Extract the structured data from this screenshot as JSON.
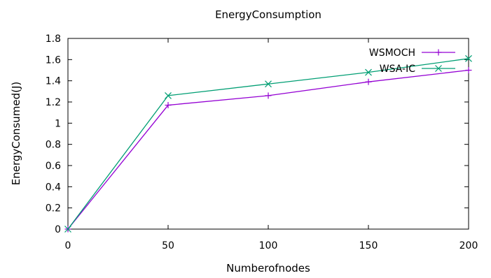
{
  "chart_data": {
    "type": "line",
    "title": "EnergyConsumption",
    "xlabel": "Numberofnodes",
    "ylabel": "EnergyConsumed(J)",
    "x": [
      0,
      50,
      100,
      150,
      200
    ],
    "xlim": [
      0,
      200
    ],
    "ylim": [
      0,
      1.8
    ],
    "xticks": [
      0,
      50,
      100,
      150,
      200
    ],
    "xtick_labels": [
      "0",
      "50",
      "100",
      "150",
      "200"
    ],
    "yticks": [
      0,
      0.2,
      0.4,
      0.6,
      0.8,
      1,
      1.2,
      1.4,
      1.6,
      1.8
    ],
    "ytick_labels": [
      "0",
      "0.2",
      "0.4",
      "0.6",
      "0.8",
      "1",
      "1.2",
      "1.4",
      "1.6",
      "1.8"
    ],
    "grid": false,
    "legend": "top-right",
    "series": [
      {
        "name": "WSMOCH",
        "color": "#9400d3",
        "marker": "plus",
        "values": [
          0,
          1.17,
          1.26,
          1.39,
          1.5
        ]
      },
      {
        "name": "WSA-IC",
        "color": "#009e73",
        "marker": "cross",
        "values": [
          0,
          1.26,
          1.37,
          1.48,
          1.61
        ]
      }
    ]
  }
}
